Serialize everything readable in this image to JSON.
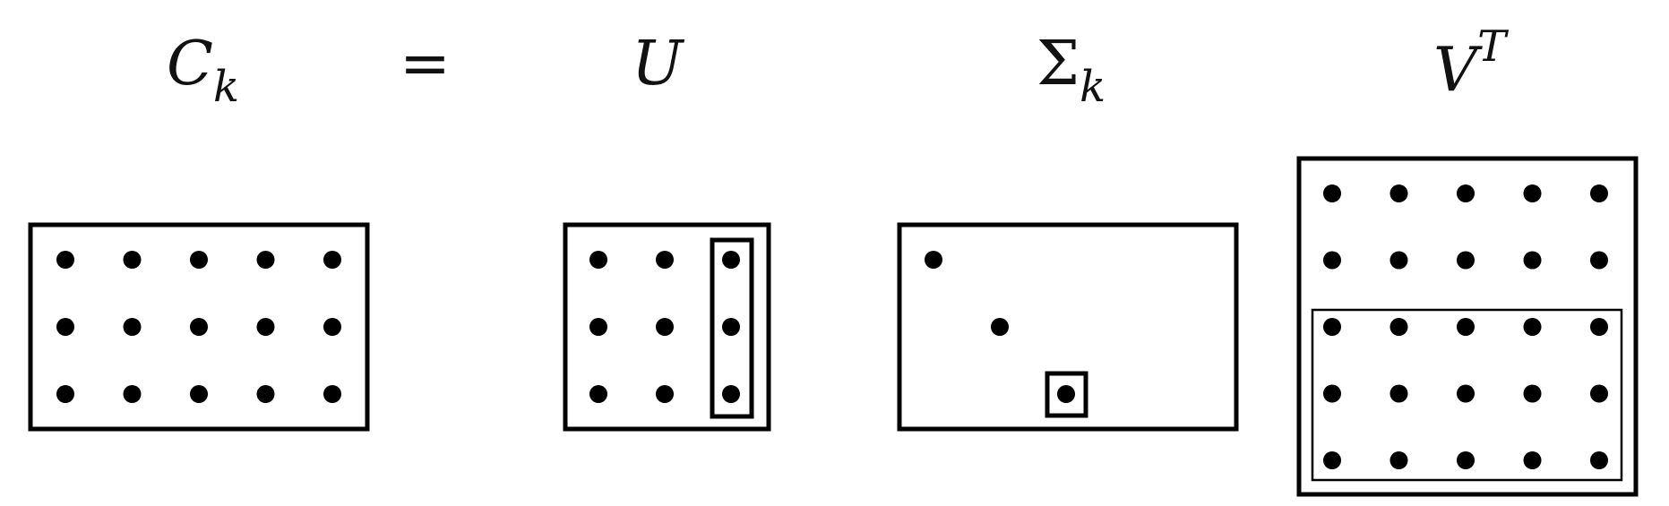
{
  "equation": {
    "ck": {
      "symbol": "C",
      "subscript": "k"
    },
    "equals": "=",
    "u": {
      "symbol": "U"
    },
    "sigma": {
      "symbol": "Σ",
      "subscript": "k"
    },
    "vt": {
      "symbol": "V",
      "superscript": "T"
    }
  },
  "matrices": {
    "ck": {
      "rows": 3,
      "cols": 5,
      "highlight": "none"
    },
    "u": {
      "rows": 3,
      "cols": 3,
      "highlight": "last-column"
    },
    "sigma": {
      "rows": 3,
      "cols": 3,
      "pattern": "diagonal",
      "highlight": "last-diagonal-entry"
    },
    "vt": {
      "rows": 5,
      "cols": 5,
      "highlight": "last-three-rows"
    }
  },
  "colors": {
    "stroke": "#000000",
    "dot": "#000000",
    "background": "#ffffff"
  }
}
